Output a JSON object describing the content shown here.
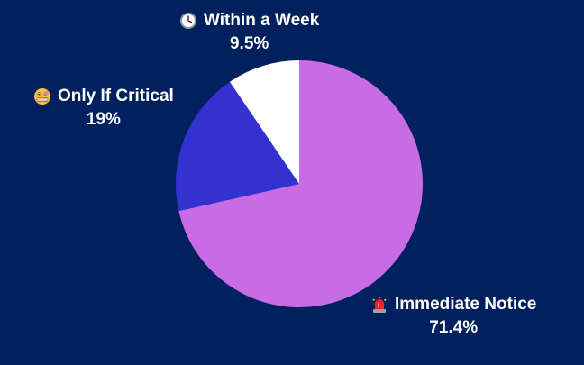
{
  "chart_data": {
    "type": "pie",
    "title": "",
    "slices": [
      {
        "label": "Immediate Notice",
        "value": 71.4,
        "percent_label": "71.4%",
        "color": "#c86ce5",
        "icon": "siren-icon"
      },
      {
        "label": "Only If Critical",
        "value": 19,
        "percent_label": "19%",
        "color": "#3431d1",
        "icon": "zipper-mouth-face-icon"
      },
      {
        "label": "Within a Week",
        "value": 9.5,
        "percent_label": "9.5%",
        "color": "#ffffff",
        "icon": "clock-icon"
      }
    ],
    "background_color": "#00215e",
    "label_color": "#ffffff",
    "start_angle": "12 o'clock",
    "direction": "clockwise",
    "legend": "none"
  }
}
